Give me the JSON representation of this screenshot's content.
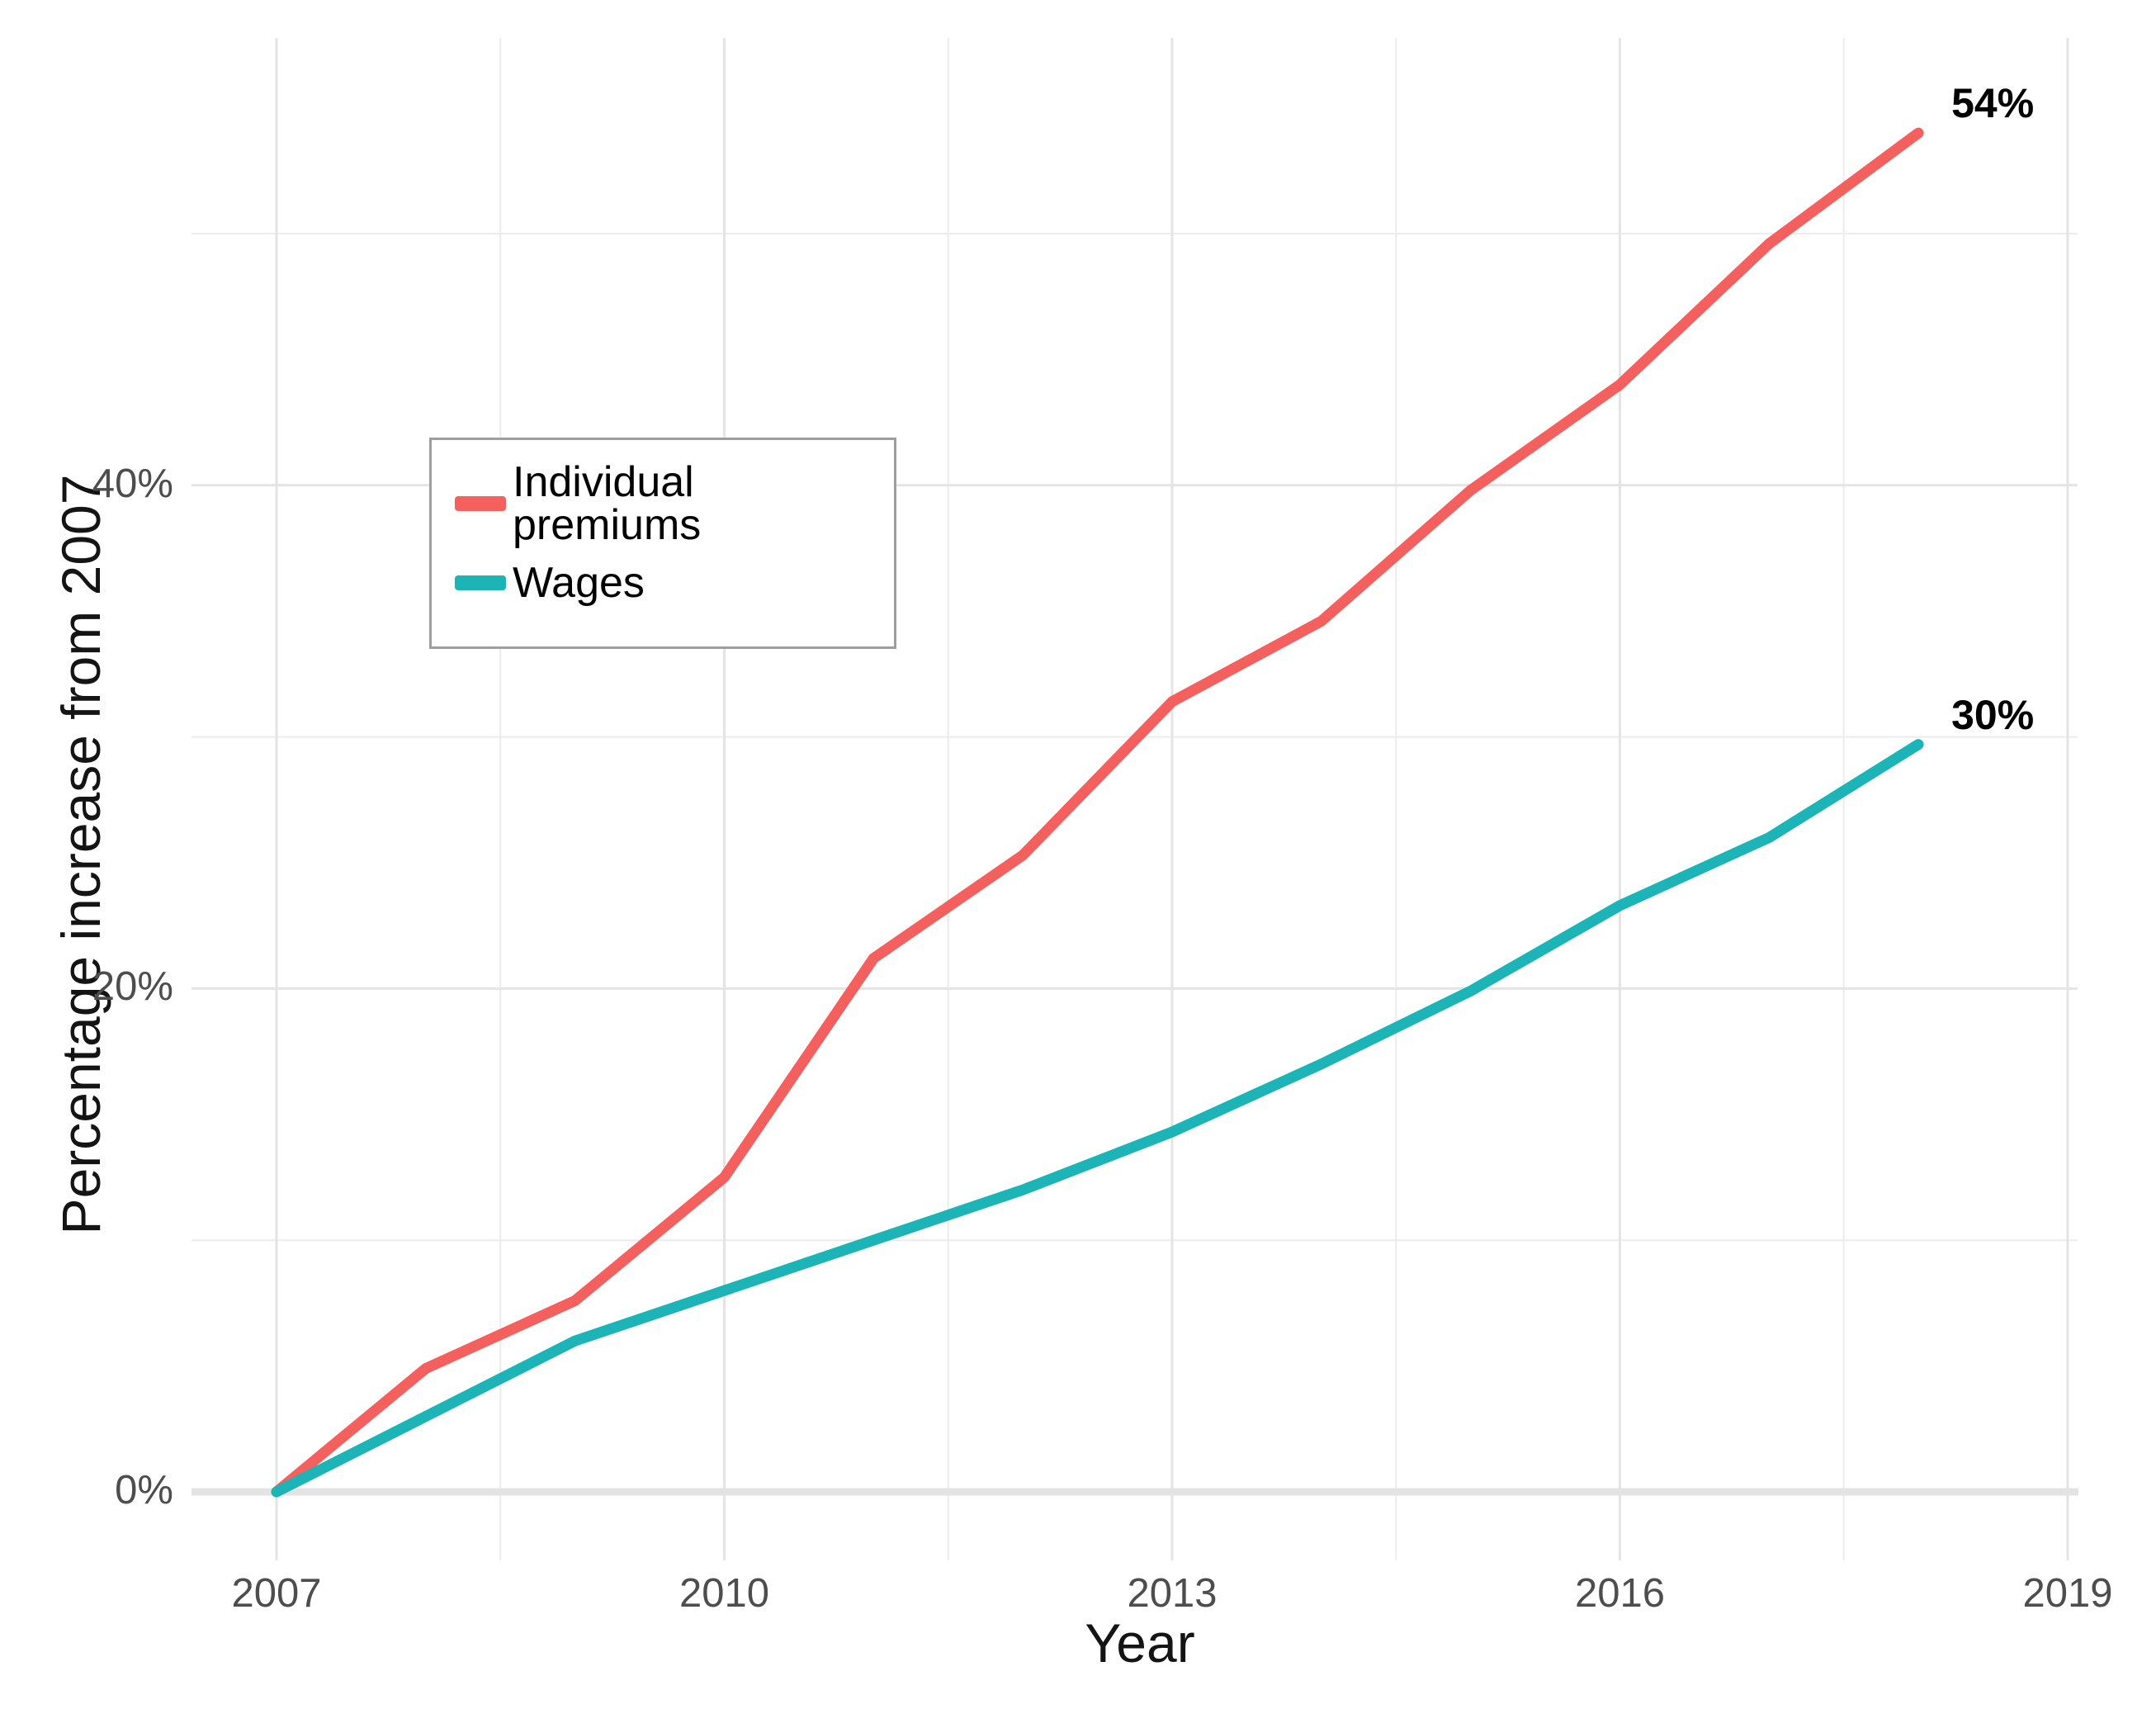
{
  "chart_data": {
    "type": "line",
    "title": "",
    "xlabel": "Year",
    "ylabel": "Percentage increase from 2007",
    "x": [
      2007,
      2008,
      2009,
      2010,
      2011,
      2012,
      2013,
      2014,
      2015,
      2016,
      2017,
      2018
    ],
    "series": [
      {
        "name": "Individual premiums",
        "color": "#F3605E",
        "values": [
          0,
          4.9,
          7.6,
          12.5,
          21.2,
          25.3,
          31.4,
          34.6,
          39.8,
          44.0,
          49.6,
          54.0
        ],
        "end_label": "54%"
      },
      {
        "name": "Wages",
        "color": "#1CB4B7",
        "values": [
          0,
          3.0,
          6.0,
          8.0,
          10.0,
          12.0,
          14.3,
          17.0,
          19.9,
          23.3,
          26.0,
          29.7
        ],
        "end_label": "30%"
      }
    ],
    "x_ticks": [
      {
        "value": 2007,
        "label": "2007"
      },
      {
        "value": 2010,
        "label": "2010"
      },
      {
        "value": 2013,
        "label": "2013"
      },
      {
        "value": 2016,
        "label": "2016"
      },
      {
        "value": 2019,
        "label": "2019"
      }
    ],
    "y_ticks": [
      {
        "value": 0,
        "label": "0%"
      },
      {
        "value": 20,
        "label": "20%"
      },
      {
        "value": 40,
        "label": "40%"
      }
    ],
    "x_minor_ticks": [
      2008.5,
      2011.5,
      2014.5,
      2017.5
    ],
    "y_minor_ticks": [
      10,
      30,
      50
    ],
    "xlim": [
      2006.42,
      2019.19
    ],
    "ylim": [
      -2.7,
      58
    ],
    "grid": true,
    "baseline_value": 0,
    "legend_position": "top-left-inset"
  },
  "legend": {
    "items": [
      {
        "label": "Individual premiums",
        "color": "#F3605E"
      },
      {
        "label": "Wages",
        "color": "#1CB4B7"
      }
    ]
  },
  "styles": {
    "grid_major_color": "#e4e4e4",
    "grid_minor_color": "#ececec",
    "baseline_color": "#e3e3e3",
    "tick_text_color": "#4d4d4d"
  }
}
